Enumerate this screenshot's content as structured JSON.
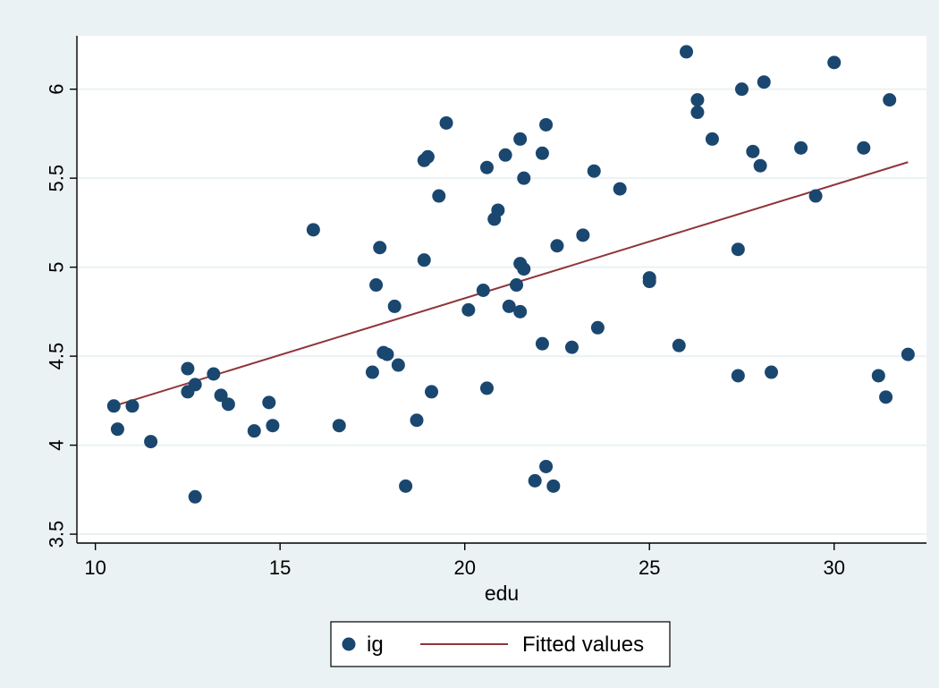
{
  "colors": {
    "outer_background": "#eaf2f3",
    "plot_background": "#ffffff",
    "gridline": "#eaf2f3",
    "marker": "#1a476f",
    "fit_line": "#90353b",
    "axis": "#000000"
  },
  "chart_data": {
    "type": "scatter",
    "xlabel": "edu",
    "ylabel": "",
    "xlim": [
      9.5,
      32.5
    ],
    "ylim": [
      3.45,
      6.3
    ],
    "x_ticks": [
      10,
      15,
      20,
      25,
      30
    ],
    "y_ticks": [
      3.5,
      4,
      4.5,
      5,
      5.5,
      6
    ],
    "grid": true,
    "legend_position": "bottom",
    "series": [
      {
        "name": "ig",
        "kind": "scatter",
        "marker": "circle",
        "color": "#1a476f",
        "points": [
          [
            10.5,
            4.22
          ],
          [
            10.6,
            4.09
          ],
          [
            11.0,
            4.22
          ],
          [
            11.5,
            4.02
          ],
          [
            12.5,
            4.43
          ],
          [
            12.5,
            4.3
          ],
          [
            12.7,
            4.34
          ],
          [
            12.7,
            3.71
          ],
          [
            13.2,
            4.4
          ],
          [
            13.4,
            4.28
          ],
          [
            13.6,
            4.23
          ],
          [
            14.3,
            4.08
          ],
          [
            14.7,
            4.24
          ],
          [
            14.8,
            4.11
          ],
          [
            15.9,
            5.21
          ],
          [
            16.6,
            4.11
          ],
          [
            17.5,
            4.41
          ],
          [
            17.6,
            4.9
          ],
          [
            17.7,
            5.11
          ],
          [
            17.8,
            4.52
          ],
          [
            17.9,
            4.51
          ],
          [
            18.1,
            4.78
          ],
          [
            18.2,
            4.45
          ],
          [
            18.4,
            3.77
          ],
          [
            18.7,
            4.14
          ],
          [
            18.9,
            5.6
          ],
          [
            18.9,
            5.04
          ],
          [
            19.0,
            5.62
          ],
          [
            19.1,
            4.3
          ],
          [
            19.3,
            5.4
          ],
          [
            19.5,
            5.81
          ],
          [
            20.1,
            4.76
          ],
          [
            20.5,
            4.87
          ],
          [
            20.6,
            5.56
          ],
          [
            20.6,
            4.32
          ],
          [
            20.8,
            5.27
          ],
          [
            20.9,
            5.32
          ],
          [
            21.1,
            5.63
          ],
          [
            21.2,
            4.78
          ],
          [
            21.4,
            4.9
          ],
          [
            21.5,
            5.72
          ],
          [
            21.5,
            5.02
          ],
          [
            21.5,
            4.75
          ],
          [
            21.6,
            5.5
          ],
          [
            21.6,
            4.99
          ],
          [
            21.9,
            3.8
          ],
          [
            22.1,
            5.64
          ],
          [
            22.1,
            4.57
          ],
          [
            22.2,
            3.88
          ],
          [
            22.2,
            5.8
          ],
          [
            22.4,
            3.77
          ],
          [
            22.5,
            5.12
          ],
          [
            22.9,
            4.55
          ],
          [
            23.2,
            5.18
          ],
          [
            23.5,
            5.54
          ],
          [
            23.6,
            4.66
          ],
          [
            24.2,
            5.44
          ],
          [
            25.0,
            4.94
          ],
          [
            25.0,
            4.92
          ],
          [
            25.8,
            4.56
          ],
          [
            26.0,
            6.21
          ],
          [
            26.3,
            5.94
          ],
          [
            26.3,
            5.87
          ],
          [
            26.7,
            5.72
          ],
          [
            27.4,
            4.39
          ],
          [
            27.4,
            5.1
          ],
          [
            27.5,
            6.0
          ],
          [
            27.8,
            5.65
          ],
          [
            28.0,
            5.57
          ],
          [
            28.1,
            6.04
          ],
          [
            28.3,
            4.41
          ],
          [
            29.1,
            5.67
          ],
          [
            29.5,
            5.4
          ],
          [
            30.0,
            6.15
          ],
          [
            30.8,
            5.67
          ],
          [
            31.2,
            4.39
          ],
          [
            31.4,
            4.27
          ],
          [
            31.5,
            5.94
          ],
          [
            32.0,
            4.51
          ]
        ]
      },
      {
        "name": "Fitted values",
        "kind": "line",
        "color": "#90353b",
        "x": [
          10.5,
          32.0
        ],
        "y": [
          4.22,
          5.59
        ]
      }
    ]
  }
}
